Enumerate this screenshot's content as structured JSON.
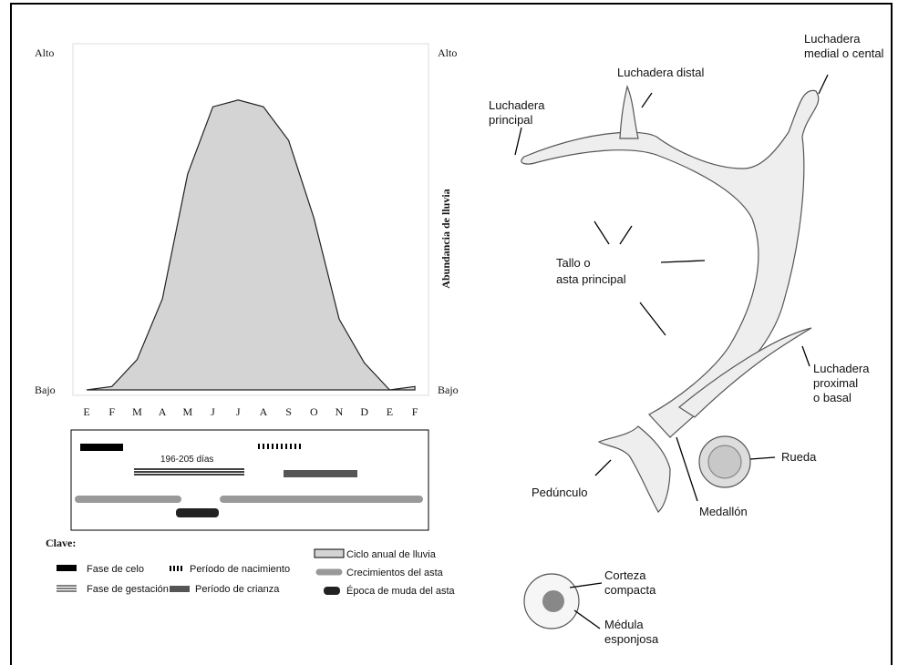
{
  "chart_data": {
    "type": "area",
    "categories": [
      "E",
      "F",
      "M",
      "A",
      "M",
      "J",
      "J",
      "A",
      "S",
      "O",
      "N",
      "D",
      "E",
      "F"
    ],
    "values": [
      0,
      1,
      9,
      27,
      64,
      84,
      86,
      84,
      74,
      51,
      21,
      8,
      0,
      1
    ],
    "color": "#d4d4d4",
    "ylim": [
      0,
      100
    ],
    "yticks": [
      {
        "value": 0,
        "label": "Bajo"
      },
      {
        "value": 100,
        "label": "Alto"
      }
    ],
    "y2lim": [
      0,
      100
    ],
    "y2ticks": [
      {
        "value": 0,
        "label": "Bajo"
      },
      {
        "value": 100,
        "label": "Alto"
      }
    ],
    "y2_label": "Abundancia de lluvia"
  },
  "timeline": {
    "duration_label": "196-205 días"
  },
  "legend": {
    "title": "Clave:",
    "items": [
      "Fase de celo",
      "Fase de gestación",
      "Período de nacimiento",
      "Período de crianza",
      "Ciclo anual de lluvia",
      "Crecimientos del asta",
      "Época de muda del asta"
    ]
  },
  "antler": {
    "labels": [
      [
        "Luchadera",
        "principal"
      ],
      [
        "Luchadera distal"
      ],
      [
        "Luchadera",
        "medial o cental"
      ],
      [
        "Tallo o",
        "asta principal"
      ],
      [
        "Luchadera",
        "proximal",
        "o basal"
      ],
      [
        "Rueda"
      ],
      [
        "Pedúnculo"
      ],
      [
        "Medallón"
      ],
      [
        "Corteza",
        "compacta"
      ],
      [
        "Médula",
        "esponjosa"
      ]
    ]
  }
}
